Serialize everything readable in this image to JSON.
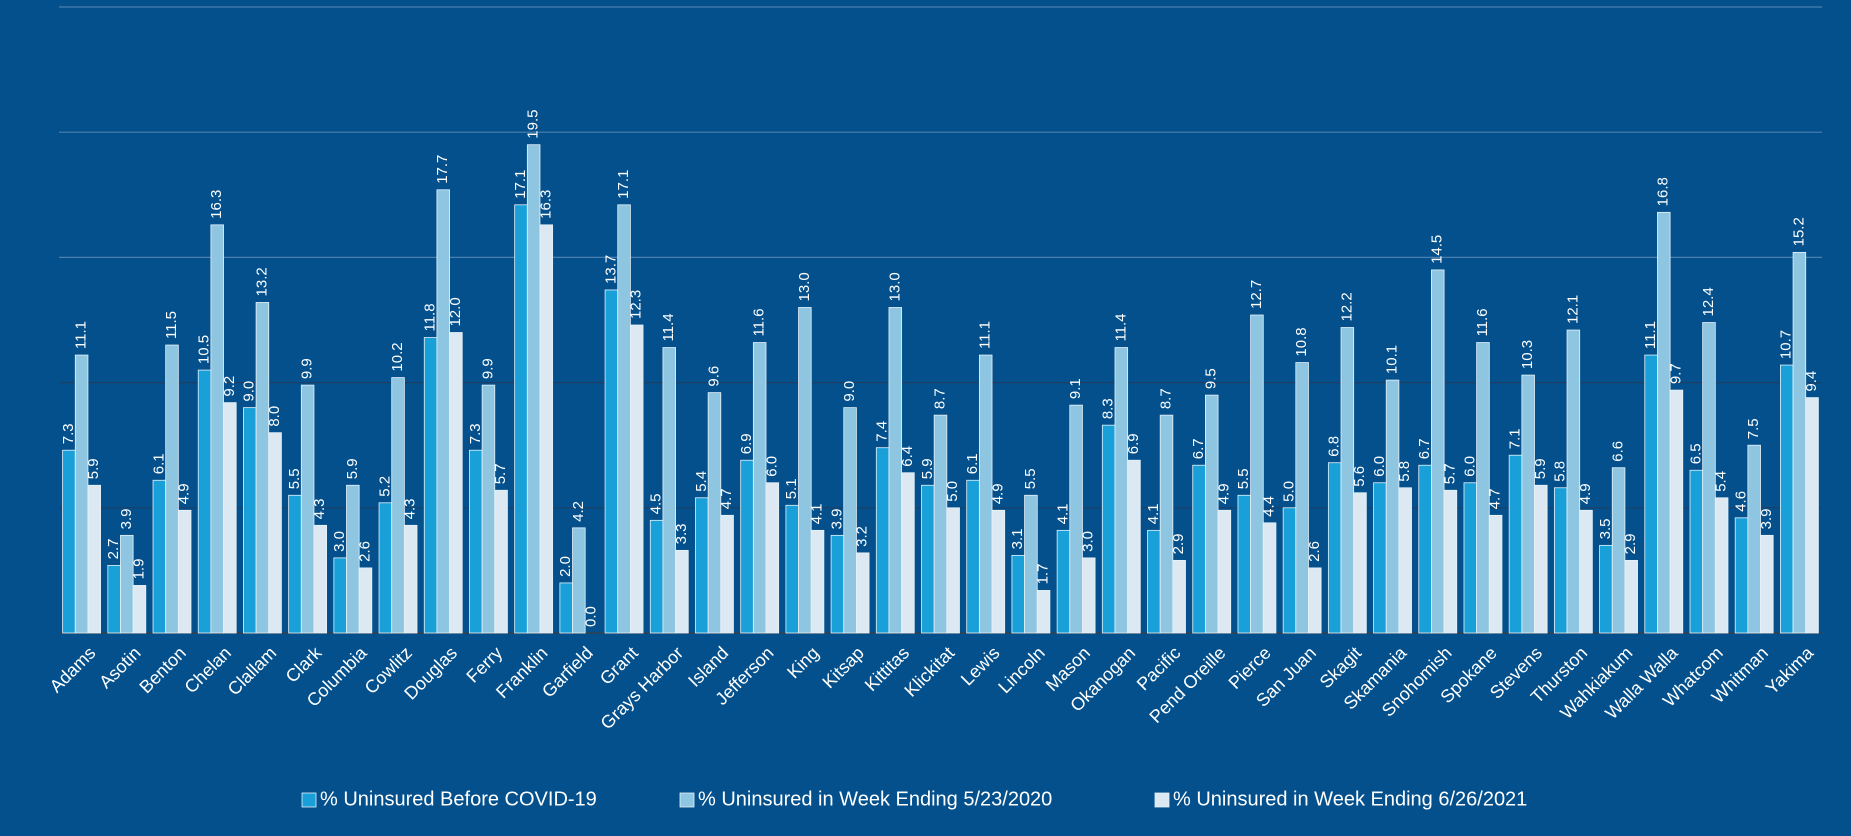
{
  "chart_data": {
    "type": "bar",
    "categories": [
      "Adams",
      "Asotin",
      "Benton",
      "Chelan",
      "Clallam",
      "Clark",
      "Columbia",
      "Cowlitz",
      "Douglas",
      "Ferry",
      "Franklin",
      "Garfield",
      "Grant",
      "Grays Harbor",
      "Island",
      "Jefferson",
      "King",
      "Kitsap",
      "Kittitas",
      "Klickitat",
      "Lewis",
      "Lincoln",
      "Mason",
      "Okanogan",
      "Pacific",
      "Pend Oreille",
      "Pierce",
      "San Juan",
      "Skagit",
      "Skamania",
      "Snohomish",
      "Spokane",
      "Stevens",
      "Thurston",
      "Wahkiakum",
      "Walla Walla",
      "Whatcom",
      "Whitman",
      "Yakima"
    ],
    "series": [
      {
        "name": "% Uninsured Before COVID-19",
        "color": "#1aa0d8",
        "values": [
          7.3,
          2.7,
          6.1,
          10.5,
          9.0,
          5.5,
          3.0,
          5.2,
          11.8,
          7.3,
          17.1,
          2.0,
          13.7,
          4.5,
          5.4,
          6.9,
          5.1,
          3.9,
          7.4,
          5.9,
          6.1,
          3.1,
          4.1,
          8.3,
          4.1,
          6.7,
          5.5,
          5.0,
          6.8,
          6.0,
          6.7,
          6.0,
          7.1,
          5.8,
          3.5,
          11.1,
          6.5,
          4.6,
          10.7
        ],
        "value_labels": [
          "7.3",
          "2.7",
          "6.1",
          "10.5",
          "9.0",
          "5.5",
          "3.0",
          "5.2",
          "11.8",
          "7.3",
          "17.1",
          "2.0",
          "13.7",
          "4.5",
          "5.4",
          "6.9",
          "5.1",
          "3.9",
          "7.4",
          "5.9",
          "6.1",
          "3.1",
          "4.1",
          "8.3",
          "4.1",
          "6.7",
          "5.5",
          "5.0",
          "6.8",
          "6.0",
          "6.7",
          "6.0",
          "7.1",
          "5.8",
          "3.5",
          "11.1",
          "6.5",
          "4.6",
          "10.7"
        ]
      },
      {
        "name": "% Uninsured in Week Ending 5/23/2020",
        "color": "#8ec5e0",
        "values": [
          11.1,
          3.9,
          11.5,
          16.3,
          13.2,
          9.9,
          5.9,
          10.2,
          17.7,
          9.9,
          19.5,
          4.2,
          17.1,
          11.4,
          9.6,
          11.6,
          13.0,
          9.0,
          13.0,
          8.7,
          11.1,
          5.5,
          9.1,
          11.4,
          8.7,
          9.5,
          12.7,
          10.8,
          12.2,
          10.1,
          14.5,
          11.6,
          10.3,
          12.1,
          6.6,
          16.8,
          12.4,
          7.5,
          15.2
        ],
        "value_labels": [
          "11.1",
          "3.9",
          "11.5",
          "16.3",
          "13.2",
          "9.9",
          "5.9",
          "10.2",
          "17.7",
          "9.9",
          "19.5",
          "4.2",
          "17.1",
          "11.4",
          "9.6",
          "11.6",
          "13.0",
          "9.0",
          "13.0",
          "8.7",
          "11.1",
          "5.5",
          "9.1",
          "11.4",
          "8.7",
          "9.5",
          "12.7",
          "10.8",
          "12.2",
          "10.1",
          "14.5",
          "11.6",
          "10.3",
          "12.1",
          "6.6",
          "16.8",
          "12.4",
          "7.5",
          "15.2"
        ]
      },
      {
        "name": "% Uninsured in Week Ending 6/26/2021",
        "color": "#dde9f2",
        "values": [
          5.9,
          1.9,
          4.9,
          9.2,
          8.0,
          4.3,
          2.6,
          4.3,
          12.0,
          5.7,
          16.3,
          0.0,
          12.3,
          3.3,
          4.7,
          6.0,
          4.1,
          3.2,
          6.4,
          5.0,
          4.9,
          1.7,
          3.0,
          6.9,
          2.9,
          4.9,
          4.4,
          2.6,
          5.6,
          5.8,
          5.7,
          4.7,
          5.9,
          4.9,
          2.9,
          9.7,
          5.4,
          3.9,
          9.4
        ],
        "value_labels": [
          "5.9",
          "1.9",
          "4.9",
          "9.2",
          "8.0",
          "4.3",
          "2.6",
          "4.3",
          "12.0",
          "5.7",
          "16.3",
          "0.0",
          "12.3",
          "3.3",
          "4.7",
          "6.0",
          "4.1",
          "3.2",
          "6.4",
          "5.0",
          "4.9",
          "1.7",
          "3.0",
          "6.9",
          "2.9",
          "4.9",
          "4.4",
          "2.6",
          "5.6",
          "5.8",
          "5.7",
          "4.7",
          "5.9",
          "4.9",
          "2.9",
          "9.7",
          "5.4",
          "3.9",
          "9.4"
        ]
      }
    ],
    "ylim": [
      0,
      25
    ],
    "yticks": [
      0,
      5,
      10,
      15,
      20,
      25
    ],
    "grid": true
  }
}
